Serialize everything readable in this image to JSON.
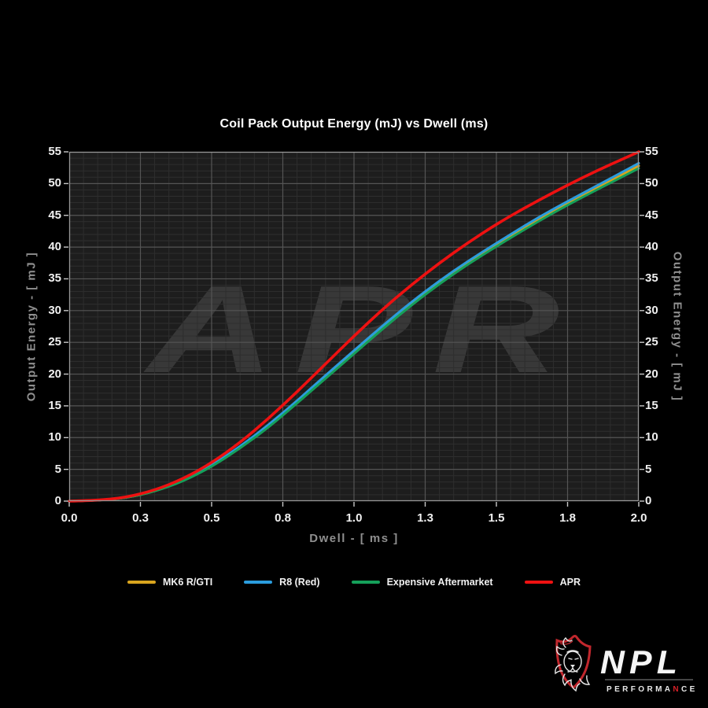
{
  "chart_data": {
    "type": "line",
    "title": "Coil Pack Output Energy (mJ) vs Dwell (ms)",
    "xlabel": "Dwell - [ ms ]",
    "ylabel": "Output Energy - [ mJ ]",
    "xlim": [
      0,
      2
    ],
    "ylim": [
      0,
      55
    ],
    "grid": {
      "major_x_step": 0.25,
      "minor_x_step": 0.05,
      "major_y_step": 5,
      "minor_y_step": 1
    },
    "x_ticks": [
      {
        "value": 0.0,
        "label": "0.0"
      },
      {
        "value": 0.25,
        "label": "0.3"
      },
      {
        "value": 0.5,
        "label": "0.5"
      },
      {
        "value": 0.75,
        "label": "0.8"
      },
      {
        "value": 1.0,
        "label": "1.0"
      },
      {
        "value": 1.25,
        "label": "1.3"
      },
      {
        "value": 1.5,
        "label": "1.5"
      },
      {
        "value": 1.75,
        "label": "1.8"
      },
      {
        "value": 2.0,
        "label": "2.0"
      }
    ],
    "y_ticks": [
      0,
      5,
      10,
      15,
      20,
      25,
      30,
      35,
      40,
      45,
      50,
      55
    ],
    "x": [
      0.0,
      0.1,
      0.2,
      0.3,
      0.4,
      0.5,
      0.6,
      0.7,
      0.8,
      0.9,
      1.0,
      1.1,
      1.2,
      1.3,
      1.4,
      1.5,
      1.6,
      1.7,
      1.8,
      1.9,
      2.0
    ],
    "series": [
      {
        "name": "MK6 R/GTI",
        "color": "#d9a51e",
        "values": [
          0.0,
          0.1,
          0.5,
          1.5,
          3.2,
          5.5,
          8.4,
          11.8,
          15.6,
          19.5,
          23.4,
          27.3,
          31.0,
          34.4,
          37.5,
          40.3,
          43.0,
          45.6,
          48.0,
          50.4,
          52.8
        ]
      },
      {
        "name": "R8 (Red)",
        "color": "#2b9dde",
        "values": [
          0.0,
          0.1,
          0.5,
          1.6,
          3.3,
          5.6,
          8.6,
          12.0,
          15.8,
          19.8,
          23.7,
          27.6,
          31.3,
          34.7,
          37.8,
          40.6,
          43.4,
          46.0,
          48.4,
          50.8,
          53.2
        ]
      },
      {
        "name": "Expensive Aftermarket",
        "color": "#15a05a",
        "values": [
          0.0,
          0.1,
          0.5,
          1.5,
          3.1,
          5.4,
          8.3,
          11.6,
          15.4,
          19.3,
          23.2,
          27.1,
          30.8,
          34.2,
          37.3,
          40.1,
          42.8,
          45.4,
          47.8,
          50.1,
          52.4
        ]
      },
      {
        "name": "APR",
        "color": "#ee1111",
        "values": [
          0.0,
          0.1,
          0.6,
          1.7,
          3.5,
          6.0,
          9.2,
          13.0,
          17.2,
          21.6,
          26.0,
          30.2,
          34.0,
          37.5,
          40.7,
          43.6,
          46.2,
          48.6,
          50.9,
          53.0,
          55.0
        ]
      }
    ],
    "legend_position": "bottom",
    "watermark": "APR"
  },
  "colors": {
    "page_bg": "#000000",
    "plot_bg": "#1d1d1d",
    "grid_major": "#555555",
    "grid_minor": "#2e2e2e",
    "spine": "#979797",
    "tick_mark": "#c8c8c8",
    "tick_label": "#f0f0f0",
    "axis_label": "#8f8f8f",
    "title": "#ffffff",
    "watermark_fill": "rgba(255,255,255,0.12)",
    "logo_red": "#c1272d",
    "logo_white": "#e8e8e8"
  },
  "logo": {
    "name": "NPL",
    "performance_pre": "PERFORMA",
    "performance_red": "N",
    "performance_post": "CE"
  }
}
